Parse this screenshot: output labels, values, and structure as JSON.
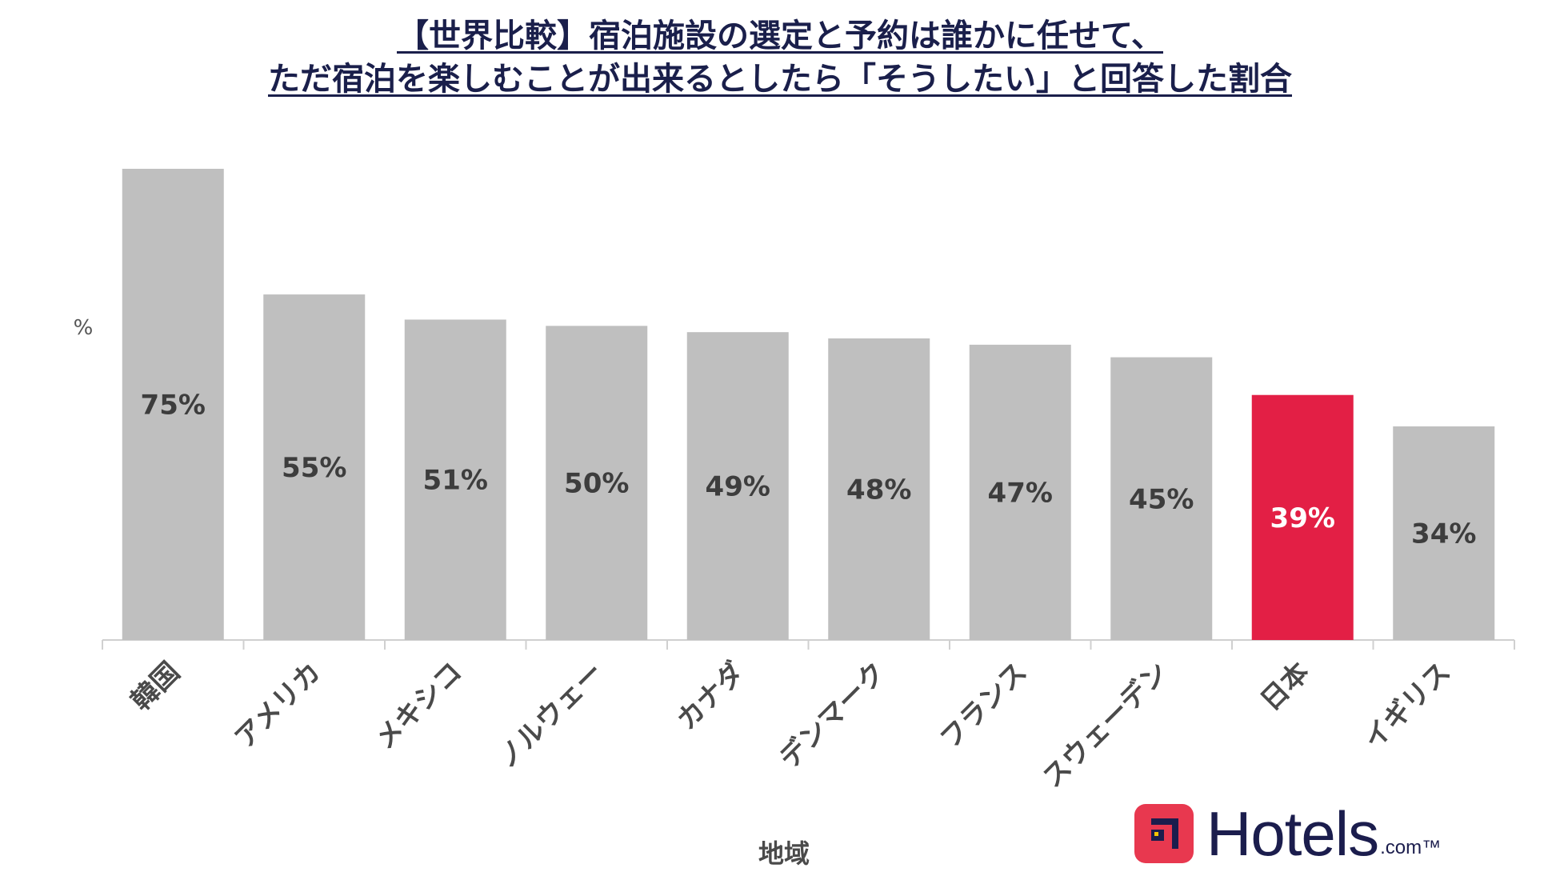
{
  "title": {
    "line1": "【世界比較】宿泊施設の選定と予約は誰かに任せて、",
    "line2": "ただ宿泊を楽しむことが出来るとしたら「そうしたい」と回答した割合"
  },
  "logo": {
    "word": "Hotels",
    "tld": ".com™",
    "brand_color": "#e8384f",
    "text_color": "#1b1d4d"
  },
  "colors": {
    "bar_default": "#bfbfbf",
    "bar_highlight": "#e31f45",
    "label_default": "#3d3d3d",
    "label_highlight": "#ffffff"
  },
  "chart_data": {
    "type": "bar",
    "ylabel": "%",
    "xlabel": "地域",
    "categories": [
      "韓国",
      "アメリカ",
      "メキシコ",
      "ノルウェー",
      "カナダ",
      "デンマーク",
      "フランス",
      "スウェーデン",
      "日本",
      "イギリス"
    ],
    "values": [
      75,
      55,
      51,
      50,
      49,
      48,
      47,
      45,
      39,
      34
    ],
    "value_labels": [
      "75%",
      "55%",
      "51%",
      "50%",
      "49%",
      "48%",
      "47%",
      "45%",
      "39%",
      "34%"
    ],
    "highlight_category": "日本",
    "ylim": [
      0,
      75
    ],
    "grid": false,
    "legend": "none"
  }
}
